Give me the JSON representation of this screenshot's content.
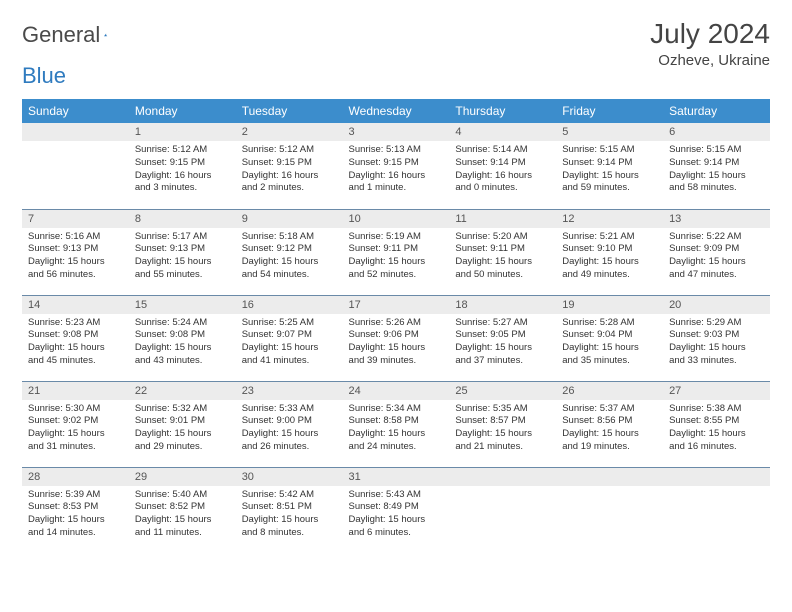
{
  "logo": {
    "text_a": "General",
    "text_b": "Blue"
  },
  "month_title": "July 2024",
  "location": "Ozheve, Ukraine",
  "colors": {
    "header_bg": "#3c8dcc",
    "header_text": "#ffffff",
    "daynum_bg": "#ececec",
    "daynum_text": "#555555",
    "cell_border": "#6a8aa8",
    "body_text": "#333333",
    "logo_gray": "#4a4a4a",
    "logo_blue": "#2f7bbf"
  },
  "day_headers": [
    "Sunday",
    "Monday",
    "Tuesday",
    "Wednesday",
    "Thursday",
    "Friday",
    "Saturday"
  ],
  "weeks": [
    [
      {
        "num": "",
        "lines": []
      },
      {
        "num": "1",
        "lines": [
          "Sunrise: 5:12 AM",
          "Sunset: 9:15 PM",
          "Daylight: 16 hours",
          "and 3 minutes."
        ]
      },
      {
        "num": "2",
        "lines": [
          "Sunrise: 5:12 AM",
          "Sunset: 9:15 PM",
          "Daylight: 16 hours",
          "and 2 minutes."
        ]
      },
      {
        "num": "3",
        "lines": [
          "Sunrise: 5:13 AM",
          "Sunset: 9:15 PM",
          "Daylight: 16 hours",
          "and 1 minute."
        ]
      },
      {
        "num": "4",
        "lines": [
          "Sunrise: 5:14 AM",
          "Sunset: 9:14 PM",
          "Daylight: 16 hours",
          "and 0 minutes."
        ]
      },
      {
        "num": "5",
        "lines": [
          "Sunrise: 5:15 AM",
          "Sunset: 9:14 PM",
          "Daylight: 15 hours",
          "and 59 minutes."
        ]
      },
      {
        "num": "6",
        "lines": [
          "Sunrise: 5:15 AM",
          "Sunset: 9:14 PM",
          "Daylight: 15 hours",
          "and 58 minutes."
        ]
      }
    ],
    [
      {
        "num": "7",
        "lines": [
          "Sunrise: 5:16 AM",
          "Sunset: 9:13 PM",
          "Daylight: 15 hours",
          "and 56 minutes."
        ]
      },
      {
        "num": "8",
        "lines": [
          "Sunrise: 5:17 AM",
          "Sunset: 9:13 PM",
          "Daylight: 15 hours",
          "and 55 minutes."
        ]
      },
      {
        "num": "9",
        "lines": [
          "Sunrise: 5:18 AM",
          "Sunset: 9:12 PM",
          "Daylight: 15 hours",
          "and 54 minutes."
        ]
      },
      {
        "num": "10",
        "lines": [
          "Sunrise: 5:19 AM",
          "Sunset: 9:11 PM",
          "Daylight: 15 hours",
          "and 52 minutes."
        ]
      },
      {
        "num": "11",
        "lines": [
          "Sunrise: 5:20 AM",
          "Sunset: 9:11 PM",
          "Daylight: 15 hours",
          "and 50 minutes."
        ]
      },
      {
        "num": "12",
        "lines": [
          "Sunrise: 5:21 AM",
          "Sunset: 9:10 PM",
          "Daylight: 15 hours",
          "and 49 minutes."
        ]
      },
      {
        "num": "13",
        "lines": [
          "Sunrise: 5:22 AM",
          "Sunset: 9:09 PM",
          "Daylight: 15 hours",
          "and 47 minutes."
        ]
      }
    ],
    [
      {
        "num": "14",
        "lines": [
          "Sunrise: 5:23 AM",
          "Sunset: 9:08 PM",
          "Daylight: 15 hours",
          "and 45 minutes."
        ]
      },
      {
        "num": "15",
        "lines": [
          "Sunrise: 5:24 AM",
          "Sunset: 9:08 PM",
          "Daylight: 15 hours",
          "and 43 minutes."
        ]
      },
      {
        "num": "16",
        "lines": [
          "Sunrise: 5:25 AM",
          "Sunset: 9:07 PM",
          "Daylight: 15 hours",
          "and 41 minutes."
        ]
      },
      {
        "num": "17",
        "lines": [
          "Sunrise: 5:26 AM",
          "Sunset: 9:06 PM",
          "Daylight: 15 hours",
          "and 39 minutes."
        ]
      },
      {
        "num": "18",
        "lines": [
          "Sunrise: 5:27 AM",
          "Sunset: 9:05 PM",
          "Daylight: 15 hours",
          "and 37 minutes."
        ]
      },
      {
        "num": "19",
        "lines": [
          "Sunrise: 5:28 AM",
          "Sunset: 9:04 PM",
          "Daylight: 15 hours",
          "and 35 minutes."
        ]
      },
      {
        "num": "20",
        "lines": [
          "Sunrise: 5:29 AM",
          "Sunset: 9:03 PM",
          "Daylight: 15 hours",
          "and 33 minutes."
        ]
      }
    ],
    [
      {
        "num": "21",
        "lines": [
          "Sunrise: 5:30 AM",
          "Sunset: 9:02 PM",
          "Daylight: 15 hours",
          "and 31 minutes."
        ]
      },
      {
        "num": "22",
        "lines": [
          "Sunrise: 5:32 AM",
          "Sunset: 9:01 PM",
          "Daylight: 15 hours",
          "and 29 minutes."
        ]
      },
      {
        "num": "23",
        "lines": [
          "Sunrise: 5:33 AM",
          "Sunset: 9:00 PM",
          "Daylight: 15 hours",
          "and 26 minutes."
        ]
      },
      {
        "num": "24",
        "lines": [
          "Sunrise: 5:34 AM",
          "Sunset: 8:58 PM",
          "Daylight: 15 hours",
          "and 24 minutes."
        ]
      },
      {
        "num": "25",
        "lines": [
          "Sunrise: 5:35 AM",
          "Sunset: 8:57 PM",
          "Daylight: 15 hours",
          "and 21 minutes."
        ]
      },
      {
        "num": "26",
        "lines": [
          "Sunrise: 5:37 AM",
          "Sunset: 8:56 PM",
          "Daylight: 15 hours",
          "and 19 minutes."
        ]
      },
      {
        "num": "27",
        "lines": [
          "Sunrise: 5:38 AM",
          "Sunset: 8:55 PM",
          "Daylight: 15 hours",
          "and 16 minutes."
        ]
      }
    ],
    [
      {
        "num": "28",
        "lines": [
          "Sunrise: 5:39 AM",
          "Sunset: 8:53 PM",
          "Daylight: 15 hours",
          "and 14 minutes."
        ]
      },
      {
        "num": "29",
        "lines": [
          "Sunrise: 5:40 AM",
          "Sunset: 8:52 PM",
          "Daylight: 15 hours",
          "and 11 minutes."
        ]
      },
      {
        "num": "30",
        "lines": [
          "Sunrise: 5:42 AM",
          "Sunset: 8:51 PM",
          "Daylight: 15 hours",
          "and 8 minutes."
        ]
      },
      {
        "num": "31",
        "lines": [
          "Sunrise: 5:43 AM",
          "Sunset: 8:49 PM",
          "Daylight: 15 hours",
          "and 6 minutes."
        ]
      },
      {
        "num": "",
        "lines": []
      },
      {
        "num": "",
        "lines": []
      },
      {
        "num": "",
        "lines": []
      }
    ]
  ]
}
